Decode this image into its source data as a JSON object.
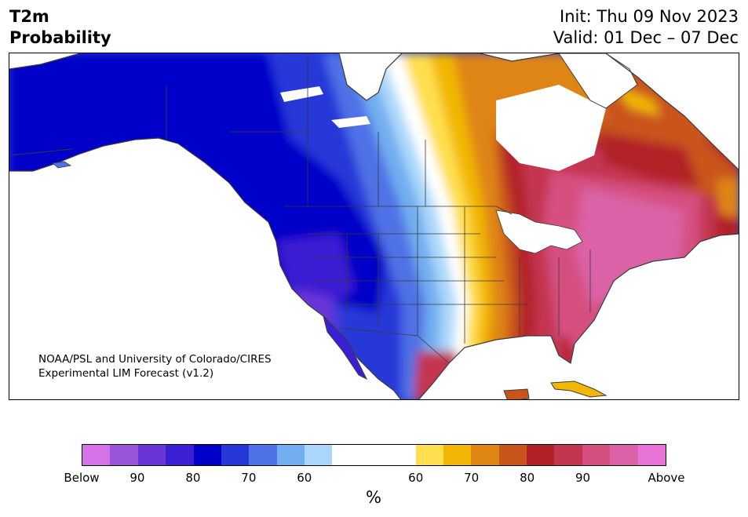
{
  "title": {
    "line1": "T2m",
    "line2": "Probability",
    "init": "Init: Thu 09 Nov 2023",
    "valid": "Valid: 01 Dec – 07 Dec"
  },
  "credit": {
    "line1": "NOAA/PSL and University of Colorado/CIRES",
    "line2": "Experimental LIM Forecast (v1.2)"
  },
  "colorbar": {
    "unit": "%",
    "tick_labels": [
      "Below",
      "90",
      "80",
      "70",
      "60",
      "60",
      "70",
      "80",
      "90",
      "Above"
    ],
    "below_colors": [
      "#d672e8",
      "#9a54da",
      "#6a35d6",
      "#3b1fd2",
      "#0000c8",
      "#2738d8",
      "#4f72e6",
      "#72aef0",
      "#abd8fa"
    ],
    "neutral_color": "#ffffff",
    "above_colors": [
      "#ffdf4e",
      "#f2b705",
      "#df8512",
      "#c9551b",
      "#b22126",
      "#c43650",
      "#d55080",
      "#db62a6",
      "#e873d8"
    ]
  }
}
